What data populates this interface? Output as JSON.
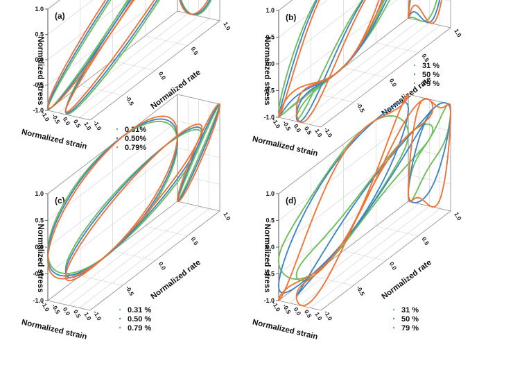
{
  "figure": {
    "colors": {
      "green": "#6cbd5c",
      "blue": "#3d86c6",
      "orange": "#f07334"
    },
    "axes": {
      "zlabel": "Normalized stress",
      "xlabel": "Normalized strain",
      "ylabel": "Normalized rate"
    }
  },
  "chart_data": [
    {
      "type": "line",
      "panel": "(a)",
      "view": "3d-lissajous-bowditch",
      "zlabel": "Normalized stress",
      "xlabel": "Normalized strain",
      "ylabel": "Normalized rate",
      "zlim": [
        -1.0,
        1.0
      ],
      "xlim": [
        -1.0,
        1.0
      ],
      "ylim": [
        -1.0,
        1.0
      ],
      "z_ticks": [
        "1.0",
        "0.5",
        "0.0",
        "-0.5",
        "-1.0"
      ],
      "x_ticks": [
        "-1.0",
        "-0.5",
        "0.0",
        "0.5",
        "1.0"
      ],
      "y_ticks": [
        "1.0",
        "0.5",
        "0.0",
        "-0.5",
        "-1.0"
      ],
      "legend_pos": "lower-middle",
      "series": [
        {
          "name": "0.31%",
          "color": "#6cbd5c",
          "phase_deg": 75
        },
        {
          "name": "0.50%",
          "color": "#3d86c6",
          "phase_deg": 71
        },
        {
          "name": "0.79%",
          "color": "#f07334",
          "phase_deg": 66
        }
      ]
    },
    {
      "type": "line",
      "panel": "(b)",
      "view": "3d-lissajous-bowditch",
      "zlabel": "Normalized stress",
      "xlabel": "Normalized strain",
      "ylabel": "Normalized rate",
      "zlim": [
        -1.0,
        1.0
      ],
      "xlim": [
        -1.0,
        1.0
      ],
      "ylim": [
        -1.0,
        1.0
      ],
      "z_ticks": [
        "1.0",
        "0.5",
        "0.0",
        "-0.5",
        "-1.0"
      ],
      "x_ticks": [
        "-1.0",
        "-0.5",
        "0.0",
        "0.5",
        "1.0"
      ],
      "y_ticks": [
        "1.0",
        "0.5",
        "0.0",
        "-0.5",
        "-1.0"
      ],
      "legend_pos": "middle-right",
      "series": [
        {
          "name": "31 %",
          "color": "#6cbd5c",
          "phase_deg": 40,
          "h3": 0.16
        },
        {
          "name": "50 %",
          "color": "#3d86c6",
          "phase_deg": 45,
          "h3": 0.24
        },
        {
          "name": "79 %",
          "color": "#f07334",
          "phase_deg": 50,
          "h3": 0.32
        }
      ]
    },
    {
      "type": "line",
      "panel": "(c)",
      "view": "3d-lissajous-bowditch",
      "zlabel": "Normalized stress",
      "xlabel": "Normalized strain",
      "ylabel": "Normalized rate",
      "zlim": [
        -1.0,
        1.0
      ],
      "xlim": [
        -1.0,
        1.0
      ],
      "ylim": [
        -1.0,
        1.0
      ],
      "z_ticks": [
        "1.0",
        "0.5",
        "0.0",
        "-0.5",
        "-1.0"
      ],
      "x_ticks": [
        "-1.0",
        "-0.5",
        "0.0",
        "0.5",
        "1.0"
      ],
      "y_ticks": [
        "1.0",
        "0.5",
        "0.0",
        "-0.5",
        "-1.0"
      ],
      "legend_pos": "lower-middle",
      "series": [
        {
          "name": "0.31 %",
          "color": "#6cbd5c",
          "phase_deg": 5
        },
        {
          "name": "0.50 %",
          "color": "#3d86c6",
          "phase_deg": 9
        },
        {
          "name": "0.79 %",
          "color": "#f07334",
          "phase_deg": 14
        }
      ]
    },
    {
      "type": "line",
      "panel": "(d)",
      "view": "3d-lissajous-bowditch",
      "zlabel": "Normalized stress",
      "xlabel": "Normalized strain",
      "ylabel": "Normalized rate",
      "zlim": [
        -1.0,
        1.0
      ],
      "xlim": [
        -1.0,
        1.0
      ],
      "ylim": [
        -1.0,
        1.0
      ],
      "z_ticks": [
        "1.0",
        "0.5",
        "0.0",
        "-0.5",
        "-1.0"
      ],
      "x_ticks": [
        "-1.0",
        "-0.5",
        "0.0",
        "0.5",
        "1.0"
      ],
      "y_ticks": [
        "1.0",
        "0.5",
        "0.0",
        "-0.5",
        "-1.0"
      ],
      "legend_pos": "lower-middle",
      "series": [
        {
          "name": "31 %",
          "color": "#6cbd5c",
          "phase_deg": 22,
          "h3": -0.1
        },
        {
          "name": "50 %",
          "color": "#3d86c6",
          "phase_deg": 40,
          "h3": 0.05
        },
        {
          "name": "79 %",
          "color": "#f07334",
          "phase_deg": 60,
          "h3": 0.22
        }
      ]
    }
  ]
}
